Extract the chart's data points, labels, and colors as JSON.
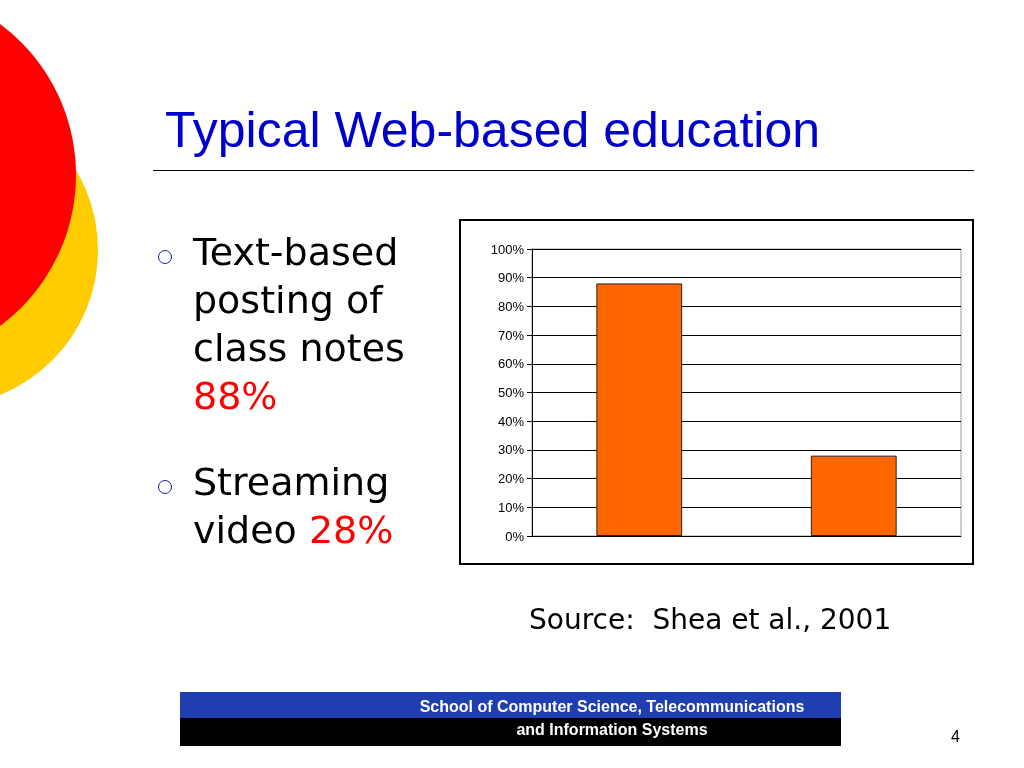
{
  "chart_data": {
    "type": "bar",
    "title": "Typical Web-based education",
    "categories": [
      null,
      null
    ],
    "values": [
      88,
      28
    ],
    "color": "#ff6600",
    "ylim": [
      0,
      100
    ],
    "yticks": [
      {
        "value": 0,
        "label": "0%"
      },
      {
        "value": 10,
        "label": "10%"
      },
      {
        "value": 20,
        "label": "20%"
      },
      {
        "value": 30,
        "label": "30%"
      },
      {
        "value": 40,
        "label": "40%"
      },
      {
        "value": 50,
        "label": "50%"
      },
      {
        "value": 60,
        "label": "60%"
      },
      {
        "value": 70,
        "label": "70%"
      },
      {
        "value": 80,
        "label": "80%"
      },
      {
        "value": 90,
        "label": "90%"
      },
      {
        "value": 100,
        "label": "100%"
      }
    ],
    "grid": "y",
    "tick_labels": "y",
    "annotations": [
      "Text-based posting of class notes 88%",
      "Streaming video 28%",
      "Source:  Shea et al., 2001",
      "School of Computer Science, Telecommunications and Information Systems",
      "4"
    ]
  }
}
